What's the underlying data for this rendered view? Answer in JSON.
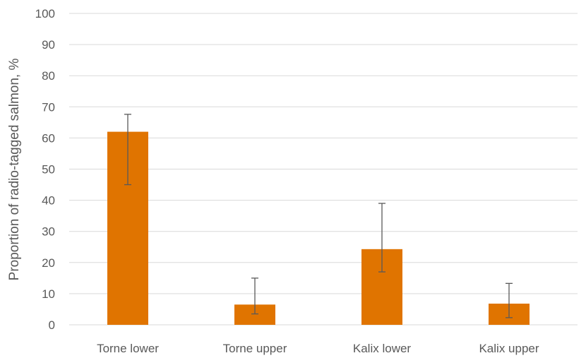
{
  "chart_data": {
    "type": "bar",
    "title": "",
    "xlabel": "",
    "ylabel": "Proportion of radio-tagged salmon, %",
    "categories": [
      "Torne lower",
      "Torne upper",
      "Kalix lower",
      "Kalix upper"
    ],
    "values": [
      62,
      6.5,
      24.3,
      6.8
    ],
    "error_low": [
      45,
      3.5,
      17,
      2.3
    ],
    "error_high": [
      67.6,
      15,
      39,
      13.3
    ],
    "ylim": [
      0,
      100
    ],
    "yticks": [
      0,
      10,
      20,
      30,
      40,
      50,
      60,
      70,
      80,
      90,
      100
    ],
    "grid": true,
    "bar_color": "#e07400",
    "error_color": "#595959",
    "grid_color": "#d9d9d9",
    "text_color": "#595959"
  }
}
